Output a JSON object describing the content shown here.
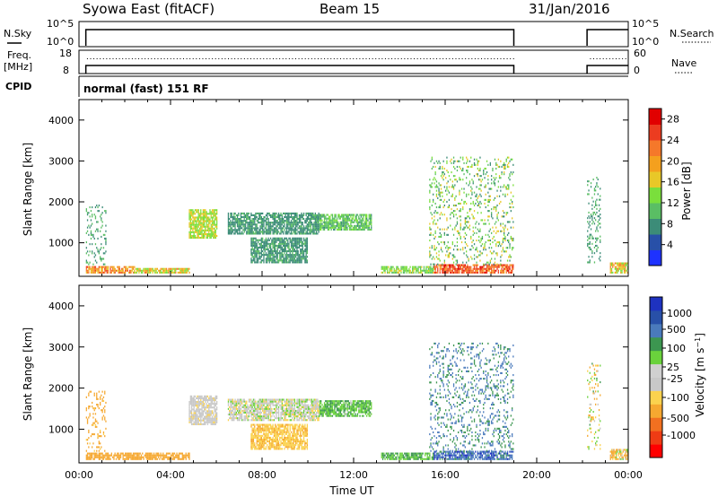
{
  "header": {
    "station": "Syowa East (fitACF)",
    "beam": "Beam 15",
    "date": "31/Jan/2016"
  },
  "summary": {
    "nsky_label": "N.Sky",
    "nsky_ticks": [
      "10^5",
      "10^0"
    ],
    "nsearch_label": "N.Search",
    "freq_label": "Freq.",
    "freq_unit": "[MHz]",
    "freq_ticks": [
      "18",
      "8"
    ],
    "nave_ticks": [
      "60",
      "0"
    ],
    "nave_label": "Nave",
    "cpid_label": "CPID",
    "cpid_text": "normal (fast) 151 RF"
  },
  "colors": {
    "power_scale": [
      "#1e32ff",
      "#2850a8",
      "#3c8c78",
      "#5abe64",
      "#7adf3c",
      "#e8c828",
      "#f4a01e",
      "#f5782a",
      "#ec3c20",
      "#e10000"
    ],
    "velocity_scale": [
      "#ff0000",
      "#ef3c14",
      "#f27020",
      "#f6a830",
      "#fbd24e",
      "#c8c8c8",
      "#d0d0d0",
      "#6ad23c",
      "#3c9650",
      "#4a7abc",
      "#2850a8",
      "#1e32c0"
    ]
  },
  "chart_data": [
    {
      "type": "heatmap",
      "name": "power",
      "ylabel": "Slant Range [km]",
      "xlim": [
        "00:00",
        "00:00"
      ],
      "ylim": [
        180,
        4500
      ],
      "y_ticks": [
        1000,
        2000,
        3000,
        4000
      ],
      "colorbar_label": "Power [dB]",
      "colorbar_ticks": [
        4,
        8,
        12,
        16,
        20,
        24,
        28
      ],
      "colorbar_range": [
        0,
        30
      ],
      "regions": [
        {
          "t0": 0.3,
          "t1": 2.4,
          "r0": 250,
          "r1": 420,
          "v0": 16,
          "v1": 26
        },
        {
          "t0": 2.4,
          "t1": 4.8,
          "r0": 250,
          "r1": 380,
          "v0": 12,
          "v1": 22
        },
        {
          "t0": 0.3,
          "t1": 1.2,
          "r0": 450,
          "r1": 1900,
          "v0": 6,
          "v1": 12
        },
        {
          "t0": 4.8,
          "t1": 6.0,
          "r0": 1100,
          "r1": 1800,
          "v0": 12,
          "v1": 18
        },
        {
          "t0": 6.5,
          "t1": 10.5,
          "r0": 1200,
          "r1": 1700,
          "v0": 6,
          "v1": 10
        },
        {
          "t0": 7.5,
          "t1": 10.0,
          "r0": 500,
          "r1": 1100,
          "v0": 6,
          "v1": 10
        },
        {
          "t0": 10.5,
          "t1": 12.8,
          "r0": 1300,
          "r1": 1700,
          "v0": 8,
          "v1": 14
        },
        {
          "t0": 13.2,
          "t1": 15.5,
          "r0": 250,
          "r1": 420,
          "v0": 10,
          "v1": 16
        },
        {
          "t0": 15.5,
          "t1": 19.0,
          "r0": 250,
          "r1": 450,
          "v0": 20,
          "v1": 28
        },
        {
          "t0": 15.3,
          "t1": 19.0,
          "r0": 450,
          "r1": 3100,
          "v0": 6,
          "v1": 18
        },
        {
          "t0": 22.2,
          "t1": 22.8,
          "r0": 500,
          "r1": 2600,
          "v0": 6,
          "v1": 12
        },
        {
          "t0": 23.2,
          "t1": 24.0,
          "r0": 250,
          "r1": 500,
          "v0": 12,
          "v1": 22
        }
      ]
    },
    {
      "type": "heatmap",
      "name": "velocity",
      "ylabel": "Slant Range [km]",
      "xlabel": "Time UT",
      "xlim": [
        "00:00",
        "00:00"
      ],
      "x_ticks": [
        "00:00",
        "04:00",
        "08:00",
        "12:00",
        "16:00",
        "20:00",
        "00:00"
      ],
      "ylim": [
        180,
        4500
      ],
      "y_ticks": [
        1000,
        2000,
        3000,
        4000
      ],
      "colorbar_label": "Velocity [m s^-1]",
      "colorbar_ticks": [
        "-1000",
        "-500",
        "-100",
        "-25",
        "25",
        "100",
        "500",
        "1000"
      ],
      "regions": [
        {
          "t0": 0.3,
          "t1": 4.8,
          "r0": 250,
          "r1": 420,
          "v0": -500,
          "v1": -150
        },
        {
          "t0": 0.3,
          "t1": 1.2,
          "r0": 450,
          "r1": 1900,
          "v0": -300,
          "v1": -80
        },
        {
          "t0": 4.8,
          "t1": 6.0,
          "r0": 1100,
          "r1": 1800,
          "v0": -30,
          "v1": 20
        },
        {
          "t0": 6.5,
          "t1": 10.5,
          "r0": 1200,
          "r1": 1700,
          "v0": -40,
          "v1": 40
        },
        {
          "t0": 7.5,
          "t1": 10.0,
          "r0": 500,
          "r1": 1100,
          "v0": -120,
          "v1": -60
        },
        {
          "t0": 10.5,
          "t1": 12.8,
          "r0": 1300,
          "r1": 1700,
          "v0": 20,
          "v1": 150
        },
        {
          "t0": 13.2,
          "t1": 15.5,
          "r0": 250,
          "r1": 420,
          "v0": 50,
          "v1": 150
        },
        {
          "t0": 15.5,
          "t1": 19.0,
          "r0": 250,
          "r1": 450,
          "v0": 400,
          "v1": 1200
        },
        {
          "t0": 15.3,
          "t1": 19.0,
          "r0": 450,
          "r1": 3100,
          "v0": 200,
          "v1": 900
        },
        {
          "t0": 22.2,
          "t1": 22.8,
          "r0": 500,
          "r1": 2600,
          "v0": -200,
          "v1": 120
        },
        {
          "t0": 23.2,
          "t1": 24.0,
          "r0": 250,
          "r1": 500,
          "v0": -300,
          "v1": 100
        }
      ]
    }
  ]
}
